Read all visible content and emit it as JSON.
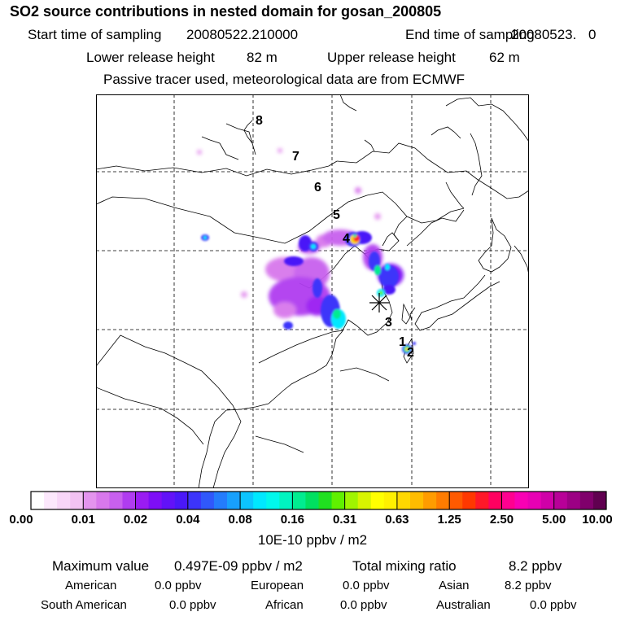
{
  "title": "SO2 source contributions in nested domain for gosan_200805",
  "header": {
    "start_label": "Start time of sampling",
    "start_value": "20080522.210000",
    "end_label": "End time of sampling",
    "end_value": "20080523.",
    "end_suffix": "0",
    "lower_label": "Lower release height",
    "lower_value": "82 m",
    "upper_label": "Upper release height",
    "upper_value": "62 m",
    "note": "Passive tracer used, meteorological data are from ECMWF"
  },
  "map": {
    "trajectory_labels": [
      "1",
      "2",
      "3",
      "4",
      "5",
      "6",
      "7",
      "8"
    ],
    "receptor": "gosan-receptor-marker"
  },
  "colorbar": {
    "ticks": [
      "0.00",
      "0.01",
      "0.02",
      "0.04",
      "0.08",
      "0.16",
      "0.31",
      "0.63",
      "1.25",
      "2.50",
      "5.00",
      "10.00"
    ],
    "colors": [
      "#ffffff",
      "#fce8fc",
      "#f8d6f8",
      "#f2c2f2",
      "#e494ee",
      "#d878ec",
      "#c860ee",
      "#b03cf0",
      "#9a1cf2",
      "#7e0ef6",
      "#6212f8",
      "#4a18f8",
      "#3c34fa",
      "#3058fb",
      "#247cfc",
      "#18a0fd",
      "#0cc4fe",
      "#00e8ff",
      "#00f8ec",
      "#00f4c0",
      "#00ec90",
      "#00e060",
      "#20e020",
      "#60f000",
      "#a0f400",
      "#d8f400",
      "#ffff00",
      "#fff000",
      "#ffd800",
      "#ffbc00",
      "#ff9c00",
      "#ff7c00",
      "#ff5a00",
      "#ff3800",
      "#ff1828",
      "#ff0060",
      "#ff0090",
      "#f800b4",
      "#e800b4",
      "#d000a8",
      "#b80098",
      "#9c0084",
      "#80006c",
      "#600050"
    ],
    "unit": "10E-10 ppbv / m2"
  },
  "stats": {
    "max_label": "Maximum value",
    "max_value": "0.497E-09 ppbv / m2",
    "total_label": "Total mixing ratio",
    "total_value": "8.2 ppbv"
  },
  "regions": {
    "american": {
      "label": "American",
      "value": "0.0 ppbv"
    },
    "european": {
      "label": "European",
      "value": "0.0 ppbv"
    },
    "asian": {
      "label": "Asian",
      "value": "8.2 ppbv"
    },
    "south_american": {
      "label": "South American",
      "value": "0.0 ppbv"
    },
    "african": {
      "label": "African",
      "value": "0.0 ppbv"
    },
    "australian": {
      "label": "Australian",
      "value": "0.0 ppbv"
    }
  }
}
